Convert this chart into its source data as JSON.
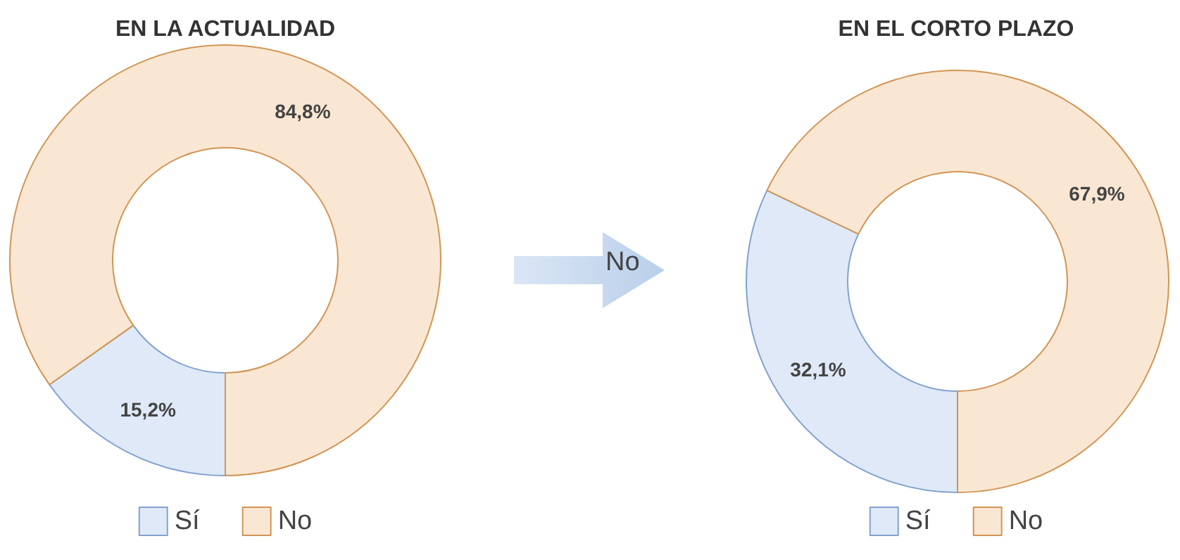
{
  "chart_data": [
    {
      "type": "donut",
      "title": "EN LA ACTUALIDAD",
      "categories": [
        "Sí",
        "No"
      ],
      "values": [
        15.2,
        84.8
      ],
      "colors": [
        "#dfe9f7",
        "#fae7d3"
      ],
      "value_labels": [
        "15,2%",
        "84,8%"
      ],
      "legend": "bottom",
      "annotations": [
        "No"
      ]
    },
    {
      "type": "donut",
      "title": "EN EL CORTO PLAZO",
      "categories": [
        "Sí",
        "No"
      ],
      "values": [
        32.1,
        67.9
      ],
      "colors": [
        "#dfe9f7",
        "#fae7d3"
      ],
      "value_labels": [
        "32,1%",
        "67,9%"
      ],
      "legend": "bottom"
    }
  ]
}
